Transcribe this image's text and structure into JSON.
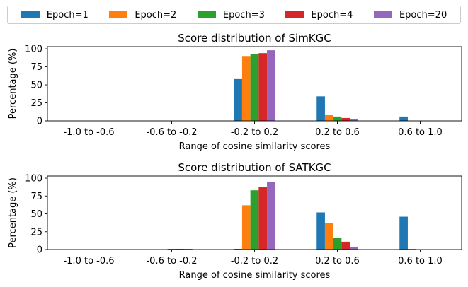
{
  "legend": {
    "items": [
      {
        "label": "Epoch=1",
        "color": "#1f77b4"
      },
      {
        "label": "Epoch=2",
        "color": "#ff7f0e"
      },
      {
        "label": "Epoch=3",
        "color": "#2ca02c"
      },
      {
        "label": "Epoch=4",
        "color": "#d62728"
      },
      {
        "label": "Epoch=20",
        "color": "#9467bd"
      }
    ]
  },
  "chart_data": [
    {
      "type": "bar",
      "title": "Score distribution of SimKGC",
      "xlabel": "Range of cosine similarity scores",
      "ylabel": "Percentage (%)",
      "ylim": [
        0,
        103
      ],
      "yticks": [
        0,
        25,
        50,
        75,
        100
      ],
      "categories": [
        "-1.0 to -0.6",
        "-0.6 to -0.2",
        "-0.2 to 0.2",
        "0.2 to 0.6",
        "0.6 to 1.0"
      ],
      "series": [
        {
          "name": "Epoch=1",
          "values": [
            0,
            0,
            58,
            34,
            6
          ]
        },
        {
          "name": "Epoch=2",
          "values": [
            0,
            0,
            90,
            8,
            0
          ]
        },
        {
          "name": "Epoch=3",
          "values": [
            0,
            0,
            93,
            6,
            0
          ]
        },
        {
          "name": "Epoch=4",
          "values": [
            0,
            0,
            94,
            4,
            0
          ]
        },
        {
          "name": "Epoch=20",
          "values": [
            0,
            0,
            98,
            2,
            0
          ]
        }
      ]
    },
    {
      "type": "bar",
      "title": "Score distribution of SATKGC",
      "xlabel": "Range of cosine similarity scores",
      "ylabel": "Percentage (%)",
      "ylim": [
        0,
        103
      ],
      "yticks": [
        0,
        25,
        50,
        75,
        100
      ],
      "categories": [
        "-1.0 to -0.6",
        "-0.6 to -0.2",
        "-0.2 to 0.2",
        "0.2 to 0.6",
        "0.6 to 1.0"
      ],
      "series": [
        {
          "name": "Epoch=1",
          "values": [
            0,
            0,
            1,
            52,
            46
          ]
        },
        {
          "name": "Epoch=2",
          "values": [
            0,
            0,
            62,
            37,
            1
          ]
        },
        {
          "name": "Epoch=3",
          "values": [
            0,
            1,
            83,
            16,
            0
          ]
        },
        {
          "name": "Epoch=4",
          "values": [
            0,
            1,
            88,
            11,
            0
          ]
        },
        {
          "name": "Epoch=20",
          "values": [
            0,
            1,
            95,
            4,
            0
          ]
        }
      ]
    }
  ]
}
